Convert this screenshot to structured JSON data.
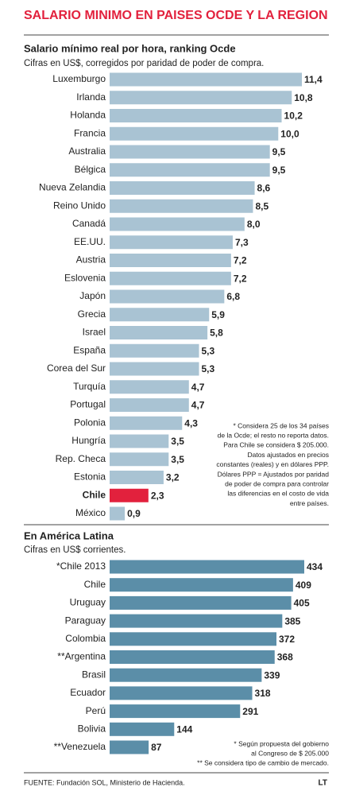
{
  "header": {
    "title": "SALARIO MINIMO EN PAISES OCDE Y LA REGION"
  },
  "chart_data": [
    {
      "type": "bar",
      "orientation": "horizontal",
      "title": "Salario mínimo real por hora, ranking Ocde",
      "subtitle": "Cifras en US$, corregidos por paridad de poder de compra.",
      "categories": [
        "Luxemburgo",
        "Irlanda",
        "Holanda",
        "Francia",
        "Australia",
        "Bélgica",
        "Nueva Zelandia",
        "Reino Unido",
        "Canadá",
        "EE.UU.",
        "Austria",
        "Eslovenia",
        "Japón",
        "Grecia",
        "Israel",
        "España",
        "Corea del Sur",
        "Turquía",
        "Portugal",
        "Polonia",
        "Hungría",
        "Rep. Checa",
        "Estonia",
        "Chile",
        "México"
      ],
      "values": [
        11.4,
        10.8,
        10.2,
        10.0,
        9.5,
        9.5,
        8.6,
        8.5,
        8.0,
        7.3,
        7.2,
        7.2,
        6.8,
        5.9,
        5.8,
        5.3,
        5.3,
        4.7,
        4.7,
        4.3,
        3.5,
        3.5,
        3.2,
        2.3,
        0.9
      ],
      "value_labels": [
        "11,4",
        "10,8",
        "10,2",
        "10,0",
        "9,5",
        "9,5",
        "8,6",
        "8,5",
        "8,0",
        "7,3",
        "7,2",
        "7,2",
        "6,8",
        "5,9",
        "5,8",
        "5,3",
        "5,3",
        "4,7",
        "4,7",
        "4,3",
        "3,5",
        "3,5",
        "3,2",
        "2,3",
        "0,9"
      ],
      "color": "#a9c3d3",
      "colors": [
        "#a9c3d3",
        "#a9c3d3",
        "#a9c3d3",
        "#a9c3d3",
        "#a9c3d3",
        "#a9c3d3",
        "#a9c3d3",
        "#a9c3d3",
        "#a9c3d3",
        "#a9c3d3",
        "#a9c3d3",
        "#a9c3d3",
        "#a9c3d3",
        "#a9c3d3",
        "#a9c3d3",
        "#a9c3d3",
        "#a9c3d3",
        "#a9c3d3",
        "#a9c3d3",
        "#a9c3d3",
        "#a9c3d3",
        "#a9c3d3",
        "#a9c3d3",
        "#e2213d",
        "#a9c3d3"
      ],
      "notes": [
        "* Considera 25 de los 34 países",
        "de la Ocde; el resto no reporta datos.",
        "Para Chile se considera $ 205.000.",
        "Datos ajustados en precios",
        "constantes (reales) y en dólares PPP.",
        "Dólares PPP = Ajustados por paridad",
        "de poder de compra para controlar",
        "las diferencias en el costo de vida",
        "entre países."
      ]
    },
    {
      "type": "bar",
      "orientation": "horizontal",
      "title": "En América Latina",
      "subtitle": "Cifras en US$ corrientes.",
      "categories": [
        "*Chile 2013",
        "Chile",
        "Uruguay",
        "Paraguay",
        "Colombia",
        "**Argentina",
        "Brasil",
        "Ecuador",
        "Perú",
        "Bolivia",
        "**Venezuela"
      ],
      "values": [
        434,
        409,
        405,
        385,
        372,
        368,
        339,
        318,
        291,
        144,
        87
      ],
      "color": "#5b8ea8",
      "notes": [
        "* Según propuesta del gobierno",
        "al Congreso de $ 205.000",
        "** Se considera tipo de cambio de mercado."
      ]
    }
  ],
  "footer": {
    "source": "FUENTE: Fundación SOL, Ministerio de Hacienda.",
    "brand": "LT"
  }
}
